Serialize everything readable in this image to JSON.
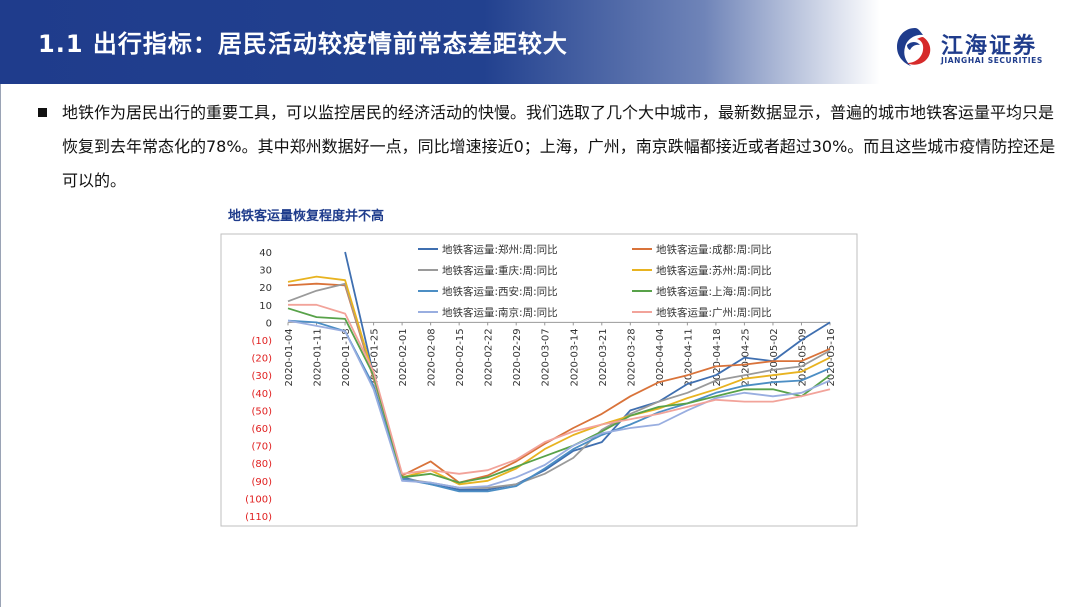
{
  "header": {
    "title": "1.1  出行指标：居民活动较疫情前常态差距较大",
    "logo_name": "江海证券",
    "logo_sub": "JIANGHAI SECURITIES",
    "brand_color": "#1f3c8c"
  },
  "body": {
    "paragraph": "地铁作为居民出行的重要工具，可以监控居民的经济活动的快慢。我们选取了几个大中城市，最新数据显示，普遍的城市地铁客运量平均只是恢复到去年常态化的78%。其中郑州数据好一点，同比增速接近0；上海，广州，南京跌幅都接近或者超过30%。而且这些城市疫情防控还是可以的。"
  },
  "chart_title": "地铁客运量恢复程度并不高",
  "chart_data": {
    "type": "line",
    "title": "地铁客运量恢复程度并不高",
    "x": [
      "2020-01-04",
      "2020-01-11",
      "2020-01-18",
      "2020-01-25",
      "2020-02-01",
      "2020-02-08",
      "2020-02-15",
      "2020-02-22",
      "2020-02-29",
      "2020-03-07",
      "2020-03-14",
      "2020-03-21",
      "2020-03-28",
      "2020-04-04",
      "2020-04-11",
      "2020-04-18",
      "2020-04-25",
      "2020-05-02",
      "2020-05-09",
      "2020-05-16"
    ],
    "ylim": [
      -110,
      40
    ],
    "yticks": [
      "40",
      "30",
      "20",
      "10",
      "0",
      "(10)",
      "(20)",
      "(30)",
      "(40)",
      "(50)",
      "(60)",
      "(70)",
      "(80)",
      "(90)",
      "(100)",
      "(110)"
    ],
    "grid": false,
    "legend_position": "top",
    "series": [
      {
        "name": "地铁客运量:郑州:周:同比",
        "color": "#3f6fb0",
        "values": [
          null,
          null,
          40,
          -30,
          -88,
          -92,
          -95,
          -95,
          -92,
          -84,
          -73,
          -68,
          -50,
          -45,
          -35,
          -30,
          -20,
          -22,
          -10,
          0
        ]
      },
      {
        "name": "地铁客运量:成都:周:同比",
        "color": "#d9733a",
        "values": [
          21,
          22,
          21,
          -32,
          -87,
          -79,
          -91,
          -87,
          -79,
          -69,
          -60,
          -52,
          -42,
          -34,
          -30,
          -25,
          -24,
          -22,
          -22,
          -15
        ]
      },
      {
        "name": "地铁客运量:重庆:周:同比",
        "color": "#9a9a9a",
        "values": [
          12,
          18,
          22,
          -31,
          -89,
          -91,
          -94,
          -94,
          -92,
          -86,
          -77,
          -61,
          -52,
          -45,
          -40,
          -33,
          -30,
          -27,
          -25,
          -16
        ]
      },
      {
        "name": "地铁客运量:苏州:周:同比",
        "color": "#e8b320",
        "values": [
          23,
          26,
          24,
          -30,
          -88,
          -84,
          -92,
          -90,
          -83,
          -72,
          -64,
          -58,
          -53,
          -49,
          -43,
          -38,
          -32,
          -30,
          -28,
          -20
        ]
      },
      {
        "name": "地铁客运量:西安:周:同比",
        "color": "#4c8ec4",
        "values": [
          1,
          0,
          -5,
          -36,
          -89,
          -92,
          -96,
          -96,
          -93,
          -83,
          -72,
          -64,
          -58,
          -51,
          -46,
          -40,
          -36,
          -34,
          -33,
          -26
        ]
      },
      {
        "name": "地铁客运量:上海:周:同比",
        "color": "#58a249",
        "values": [
          8,
          3,
          2,
          -30,
          -88,
          -86,
          -91,
          -88,
          -82,
          -76,
          -70,
          -62,
          -53,
          -48,
          -46,
          -42,
          -38,
          -38,
          -42,
          -30
        ]
      },
      {
        "name": "地铁客运量:南京:周:同比",
        "color": "#99aee0",
        "values": [
          1,
          -2,
          -5,
          -38,
          -90,
          -91,
          -94,
          -93,
          -88,
          -81,
          -70,
          -63,
          -60,
          -58,
          -50,
          -43,
          -40,
          -42,
          -40,
          -33
        ]
      },
      {
        "name": "地铁客运量:广州:周:同比",
        "color": "#f2a39a",
        "values": [
          10,
          10,
          5,
          -28,
          -86,
          -84,
          -86,
          -84,
          -78,
          -68,
          -62,
          -58,
          -55,
          -52,
          -48,
          -44,
          -45,
          -45,
          -42,
          -38
        ]
      }
    ]
  }
}
